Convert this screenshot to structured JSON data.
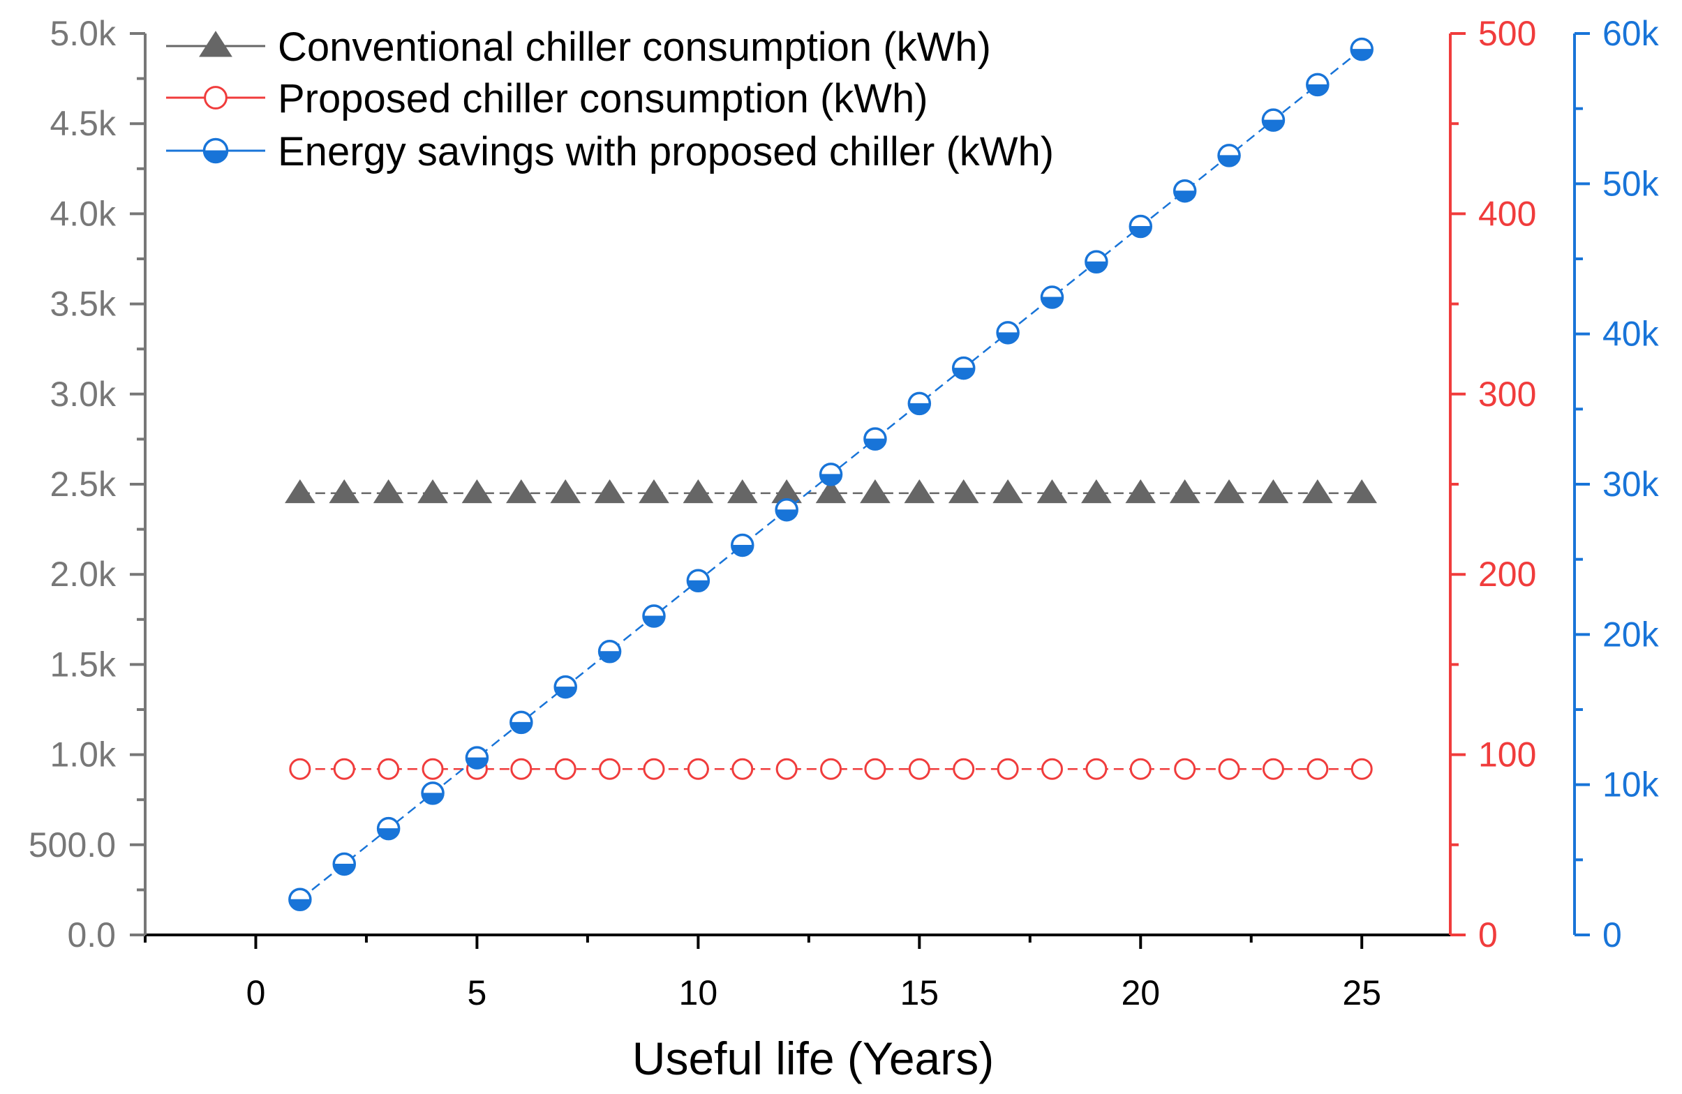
{
  "chart_data": {
    "type": "line",
    "title": "",
    "xlabel": "Useful life (Years)",
    "x": [
      1,
      2,
      3,
      4,
      5,
      6,
      7,
      8,
      9,
      10,
      11,
      12,
      13,
      14,
      15,
      16,
      17,
      18,
      19,
      20,
      21,
      22,
      23,
      24,
      25
    ],
    "xlim": [
      -2.5,
      27
    ],
    "xticks": [
      0,
      5,
      10,
      15,
      20,
      25
    ],
    "xtick_labels": [
      "0",
      "5",
      "10",
      "15",
      "20",
      "25"
    ],
    "axes": {
      "left": {
        "label": "",
        "ylim": [
          0,
          5000
        ],
        "ticks": [
          0,
          500,
          1000,
          1500,
          2000,
          2500,
          3000,
          3500,
          4000,
          4500,
          5000
        ],
        "tick_labels": [
          "0.0",
          "500.0",
          "1.0k",
          "1.5k",
          "2.0k",
          "2.5k",
          "3.0k",
          "3.5k",
          "4.0k",
          "4.5k",
          "5.0k"
        ],
        "color": "#777777"
      },
      "right1": {
        "label": "",
        "ylim": [
          0,
          500
        ],
        "ticks": [
          0,
          100,
          200,
          300,
          400,
          500
        ],
        "tick_labels": [
          "0",
          "100",
          "200",
          "300",
          "400",
          "500"
        ],
        "color": "#f03c3c"
      },
      "right2": {
        "label": "",
        "ylim": [
          0,
          60000
        ],
        "ticks": [
          0,
          10000,
          20000,
          30000,
          40000,
          50000,
          60000
        ],
        "tick_labels": [
          "0",
          "10k",
          "20k",
          "30k",
          "40k",
          "50k",
          "60k"
        ],
        "color": "#1874d8"
      }
    },
    "series": [
      {
        "name": "Conventional chiller consumption (kWh)",
        "axis": "left",
        "marker": "triangle",
        "color": "#666666",
        "values": [
          2450,
          2450,
          2450,
          2450,
          2450,
          2450,
          2450,
          2450,
          2450,
          2450,
          2450,
          2450,
          2450,
          2450,
          2450,
          2450,
          2450,
          2450,
          2450,
          2450,
          2450,
          2450,
          2450,
          2450,
          2450
        ]
      },
      {
        "name": "Proposed chiller consumption (kWh)",
        "axis": "right1",
        "marker": "open-circle",
        "color": "#f03c3c",
        "values": [
          92,
          92,
          92,
          92,
          92,
          92,
          92,
          92,
          92,
          92,
          92,
          92,
          92,
          92,
          92,
          92,
          92,
          92,
          92,
          92,
          92,
          92,
          92,
          92,
          92
        ]
      },
      {
        "name": "Energy savings with proposed chiller (kWh)",
        "axis": "right2",
        "marker": "half-filled-circle",
        "color": "#1874d8",
        "values": [
          2358,
          4716,
          7074,
          9432,
          11790,
          14148,
          16506,
          18864,
          21222,
          23580,
          25938,
          28296,
          30654,
          33012,
          35370,
          37728,
          40086,
          42444,
          44802,
          47160,
          49518,
          51876,
          54234,
          56592,
          58950
        ]
      }
    ],
    "legend": {
      "position": "top-left"
    }
  }
}
